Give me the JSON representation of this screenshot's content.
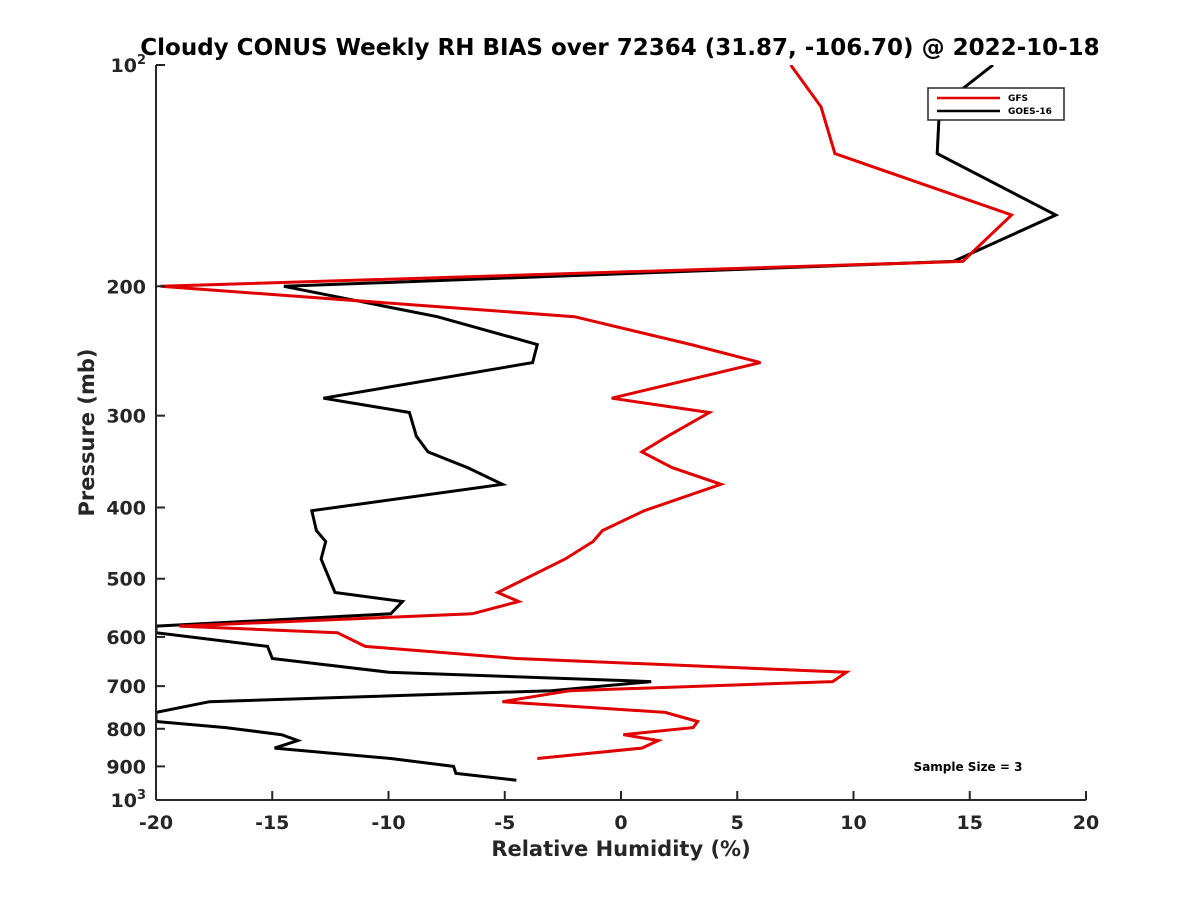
{
  "chart_data": {
    "type": "line",
    "title": "Cloudy CONUS Weekly RH BIAS over 72364 (31.87, -106.70) @ 2022-10-18",
    "xlabel": "Relative Humidity (%)",
    "ylabel": "Pressure (mb)",
    "xlim": [
      -20,
      20
    ],
    "ylim": [
      100,
      1000
    ],
    "yscale": "log",
    "y_reversed": true,
    "grid": false,
    "legend_position": "top-right",
    "x_ticks": [
      "-20",
      "-15",
      "-10",
      "-5",
      "0",
      "5",
      "10",
      "15",
      "20"
    ],
    "y_ticks": [
      {
        "value": 100,
        "label": "10",
        "sup": "2"
      },
      {
        "value": 200,
        "label": "200",
        "sup": ""
      },
      {
        "value": 300,
        "label": "300",
        "sup": ""
      },
      {
        "value": 400,
        "label": "400",
        "sup": ""
      },
      {
        "value": 500,
        "label": "500",
        "sup": ""
      },
      {
        "value": 600,
        "label": "600",
        "sup": ""
      },
      {
        "value": 700,
        "label": "700",
        "sup": ""
      },
      {
        "value": 800,
        "label": "800",
        "sup": ""
      },
      {
        "value": 900,
        "label": "900",
        "sup": ""
      },
      {
        "value": 1000,
        "label": "10",
        "sup": "3"
      }
    ],
    "annotation": "Sample Size = 3",
    "series": [
      {
        "name": "GFS",
        "color": "#e00000",
        "points": [
          [
            7.3,
            100
          ],
          [
            8.6,
            114
          ],
          [
            9.2,
            132
          ],
          [
            16.8,
            160
          ],
          [
            14.7,
            185
          ],
          [
            -19.8,
            200
          ],
          [
            -2.0,
            220
          ],
          [
            3.0,
            240
          ],
          [
            6.0,
            254
          ],
          [
            -0.4,
            284
          ],
          [
            3.8,
            297
          ],
          [
            2.0,
            320
          ],
          [
            0.9,
            336
          ],
          [
            2.2,
            353
          ],
          [
            4.3,
            372
          ],
          [
            1.0,
            404
          ],
          [
            -0.8,
            430
          ],
          [
            -1.2,
            445
          ],
          [
            -2.4,
            470
          ],
          [
            -5.3,
            522
          ],
          [
            -4.4,
            537
          ],
          [
            -6.4,
            558
          ],
          [
            -19.0,
            580
          ],
          [
            -12.2,
            592
          ],
          [
            -11.0,
            618
          ],
          [
            -4.5,
            642
          ],
          [
            9.7,
            670
          ],
          [
            9.1,
            690
          ],
          [
            -2.2,
            710
          ],
          [
            -5.1,
            735
          ],
          [
            1.9,
            760
          ],
          [
            3.3,
            782
          ],
          [
            3.1,
            797
          ],
          [
            0.1,
            815
          ],
          [
            1.6,
            830
          ],
          [
            0.9,
            850
          ],
          [
            -3.6,
            878
          ]
        ]
      },
      {
        "name": "GOES-16",
        "color": "#000000",
        "points": [
          [
            16.0,
            100
          ],
          [
            13.7,
            114
          ],
          [
            13.6,
            132
          ],
          [
            18.7,
            160
          ],
          [
            14.3,
            185
          ],
          [
            -14.5,
            200
          ],
          [
            -7.9,
            220
          ],
          [
            -3.6,
            240
          ],
          [
            -3.8,
            254
          ],
          [
            -12.8,
            284
          ],
          [
            -9.1,
            297
          ],
          [
            -8.8,
            320
          ],
          [
            -8.3,
            336
          ],
          [
            -6.6,
            353
          ],
          [
            -5.1,
            372
          ],
          [
            -13.3,
            404
          ],
          [
            -13.1,
            430
          ],
          [
            -12.7,
            445
          ],
          [
            -12.9,
            470
          ],
          [
            -12.3,
            522
          ],
          [
            -9.4,
            537
          ],
          [
            -9.9,
            558
          ],
          [
            -20.0,
            580
          ],
          [
            -20.0,
            592
          ],
          [
            -15.2,
            618
          ],
          [
            -15.0,
            642
          ],
          [
            -10.0,
            670
          ],
          [
            1.3,
            690
          ],
          [
            -3.0,
            710
          ],
          [
            -17.7,
            735
          ],
          [
            -20.0,
            760
          ],
          [
            -20.0,
            782
          ],
          [
            -17.0,
            797
          ],
          [
            -14.6,
            815
          ],
          [
            -13.9,
            830
          ],
          [
            -14.9,
            850
          ],
          [
            -9.9,
            878
          ],
          [
            -7.2,
            900
          ],
          [
            -7.1,
            920
          ],
          [
            -4.5,
            940
          ]
        ]
      }
    ]
  }
}
